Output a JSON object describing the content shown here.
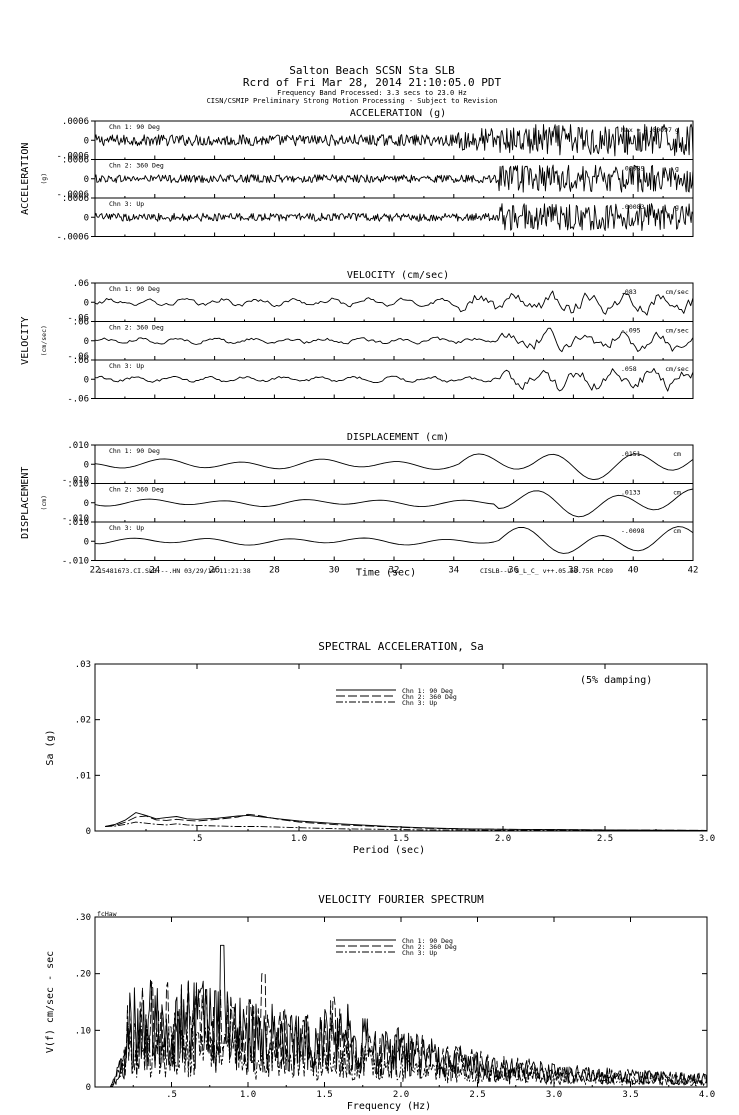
{
  "header": {
    "line1": "Salton Beach    SCSN Sta SLB",
    "line2": "Rcrd of Fri Mar 28, 2014 21:10:05.0 PDT",
    "line3": "Frequency Band Processed: 3.3 secs to 23.0 Hz",
    "line4": "CISN/CSMIP Preliminary Strong Motion Processing - Subject to Revision"
  },
  "footer": {
    "left": "15481673.CI.SLB.--.HN 03/29/14 11:21:38",
    "right": "CISLB--U  S_L_C_  v++.05.63.75R PC89"
  },
  "chart_data": [
    {
      "type": "line",
      "title": "ACCELERATION (g)",
      "ylabel": "ACCELERATION",
      "yunit": "(g)",
      "xlabel": "Time (sec)",
      "xlim": [
        22,
        42
      ],
      "xticks": [
        "22",
        "24",
        "26",
        "28",
        "30",
        "32",
        "34",
        "36",
        "38",
        "40",
        "42"
      ],
      "ytick_top": ".0006",
      "ytick_zero": "0",
      "ytick_bottom": "-.0006",
      "channels": [
        {
          "name": "Chn 1: 90 Deg",
          "peak": "Max = -.00097",
          "unit": "g",
          "ylim": [
            -0.0006,
            0.0006
          ]
        },
        {
          "name": "Chn 2: 360 Deg",
          "peak": ".00089",
          "unit": "g",
          "ylim": [
            -0.0006,
            0.0006
          ]
        },
        {
          "name": "Chn 3: Up",
          "peak": ".00083",
          "unit": "g",
          "ylim": [
            -0.0006,
            0.0006
          ]
        }
      ]
    },
    {
      "type": "line",
      "title": "VELOCITY (cm/sec)",
      "ylabel": "VELOCITY",
      "yunit": "(cm/sec)",
      "xlim": [
        22,
        42
      ],
      "ytick_top": ".06",
      "ytick_zero": "0",
      "ytick_bottom": "-.06",
      "channels": [
        {
          "name": "Chn 1: 90 Deg",
          "peak": ".083",
          "unit": "cm/sec",
          "ylim": [
            -0.06,
            0.06
          ]
        },
        {
          "name": "Chn 2: 360 Deg",
          "peak": "-.095",
          "unit": "cm/sec",
          "ylim": [
            -0.06,
            0.06
          ]
        },
        {
          "name": "Chn 3: Up",
          "peak": ".058",
          "unit": "cm/sec",
          "ylim": [
            -0.06,
            0.06
          ]
        }
      ]
    },
    {
      "type": "line",
      "title": "DISPLACEMENT (cm)",
      "ylabel": "DISPLACEMENT",
      "yunit": "(cm)",
      "xlabel": "Time (sec)",
      "xlim": [
        22,
        42
      ],
      "ytick_top": ".010",
      "ytick_zero": "0",
      "ytick_bottom": "-.010",
      "channels": [
        {
          "name": "Chn 1: 90 Deg",
          "peak": ".0151",
          "unit": "cm",
          "ylim": [
            -0.01,
            0.01
          ]
        },
        {
          "name": "Chn 2: 360 Deg",
          "peak": ".0133",
          "unit": "cm",
          "ylim": [
            -0.01,
            0.01
          ]
        },
        {
          "name": "Chn 3: Up",
          "peak": "-.0098",
          "unit": "cm",
          "ylim": [
            -0.01,
            0.01
          ]
        }
      ]
    },
    {
      "type": "line",
      "title": "SPECTRAL ACCELERATION, Sa",
      "annotation": "(5% damping)",
      "xlabel": "Period (sec)",
      "ylabel": "Sa (g)",
      "xlim": [
        0,
        3.0
      ],
      "ylim": [
        0,
        0.03
      ],
      "xticks": [
        ".5",
        "1.0",
        "1.5",
        "2.0",
        "2.5",
        "3.0"
      ],
      "yticks": [
        "0",
        ".01",
        ".02",
        ".03"
      ],
      "series": [
        {
          "name": "Chn 1: 90 Deg",
          "dash": "solid",
          "x": [
            0.05,
            0.1,
            0.15,
            0.2,
            0.25,
            0.3,
            0.35,
            0.4,
            0.45,
            0.5,
            0.6,
            0.7,
            0.75,
            0.8,
            0.9,
            1.0,
            1.2,
            1.4,
            1.6,
            1.8,
            2.0,
            2.5,
            3.0
          ],
          "y": [
            0.0008,
            0.0012,
            0.002,
            0.0033,
            0.0028,
            0.0022,
            0.0024,
            0.0026,
            0.0022,
            0.0021,
            0.0023,
            0.0027,
            0.0028,
            0.0026,
            0.0022,
            0.0018,
            0.0013,
            0.0009,
            0.0006,
            0.0004,
            0.0003,
            0.0002,
            0.0001
          ]
        },
        {
          "name": "Chn 2: 360 Deg",
          "dash": "long",
          "x": [
            0.05,
            0.1,
            0.15,
            0.2,
            0.25,
            0.3,
            0.35,
            0.4,
            0.45,
            0.5,
            0.6,
            0.7,
            0.75,
            0.8,
            0.9,
            1.0,
            1.2,
            1.4,
            1.6,
            1.8,
            2.0,
            2.5,
            3.0
          ],
          "y": [
            0.0008,
            0.001,
            0.0016,
            0.0025,
            0.0027,
            0.002,
            0.0019,
            0.0021,
            0.0019,
            0.0018,
            0.0021,
            0.0025,
            0.003,
            0.0028,
            0.0021,
            0.0016,
            0.0011,
            0.0008,
            0.0005,
            0.0004,
            0.0003,
            0.0002,
            0.0001
          ]
        },
        {
          "name": "Chn 3: Up",
          "dash": "dashdot",
          "x": [
            0.05,
            0.1,
            0.15,
            0.2,
            0.25,
            0.3,
            0.35,
            0.4,
            0.45,
            0.5,
            0.6,
            0.7,
            0.8,
            0.9,
            1.0,
            1.2,
            1.4,
            1.6,
            1.8,
            2.0,
            2.5,
            3.0
          ],
          "y": [
            0.0008,
            0.0009,
            0.0012,
            0.0016,
            0.0014,
            0.0012,
            0.0011,
            0.0013,
            0.0011,
            0.001,
            0.0009,
            0.0008,
            0.0008,
            0.0007,
            0.0006,
            0.0004,
            0.0003,
            0.0002,
            0.0002,
            0.0001,
            0.0001,
            0.0001
          ]
        }
      ]
    },
    {
      "type": "line",
      "title": "VELOCITY FOURIER SPECTRUM",
      "corner_label": "fcHaw",
      "xlabel": "Frequency (Hz)",
      "ylabel": "V(f)   cm/sec - sec",
      "xlim": [
        0,
        4.0
      ],
      "ylim": [
        0,
        0.3
      ],
      "xticks": [
        ".5",
        "1.0",
        "1.5",
        "2.0",
        "2.5",
        "3.0",
        "3.5",
        "4.0"
      ],
      "yticks": [
        "0",
        ".10",
        ".20",
        ".30"
      ],
      "series": [
        {
          "name": "Chn 1: 90 Deg",
          "dash": "solid",
          "peak_x": 0.83,
          "peak_y": 0.25
        },
        {
          "name": "Chn 2: 360 Deg",
          "dash": "long",
          "peak_x": 1.1,
          "peak_y": 0.2
        },
        {
          "name": "Chn 3: Up",
          "dash": "dashdot",
          "peak_x": 0.9,
          "peak_y": 0.14
        }
      ]
    }
  ]
}
